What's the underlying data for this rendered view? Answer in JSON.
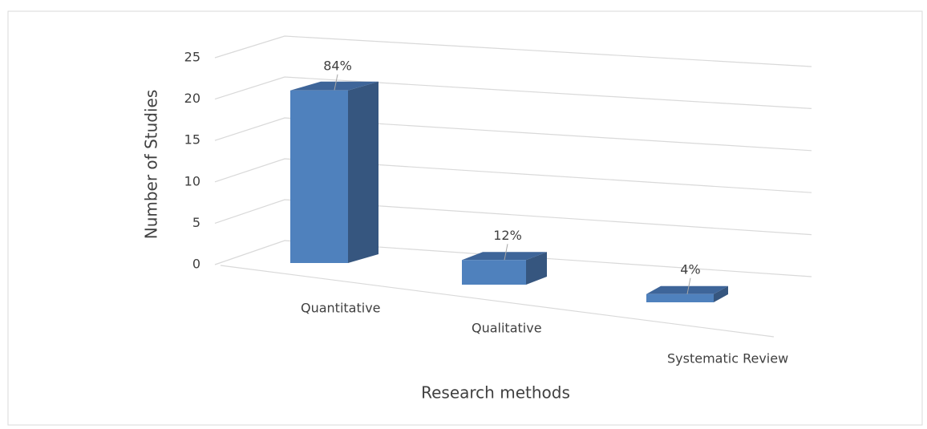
{
  "chart_data": {
    "type": "bar3d",
    "x_label": "Research methods",
    "y_label": "Number of Studies",
    "categories": [
      "Quantitative",
      "Qualitative",
      "Systematic Review"
    ],
    "values": [
      21,
      3,
      1
    ],
    "value_labels": [
      "84%",
      "12%",
      "4%"
    ],
    "color": "#4f81bd",
    "ylim": [
      0,
      25
    ],
    "yticks": [
      0,
      5,
      10,
      15,
      20,
      25
    ],
    "grid": true
  }
}
